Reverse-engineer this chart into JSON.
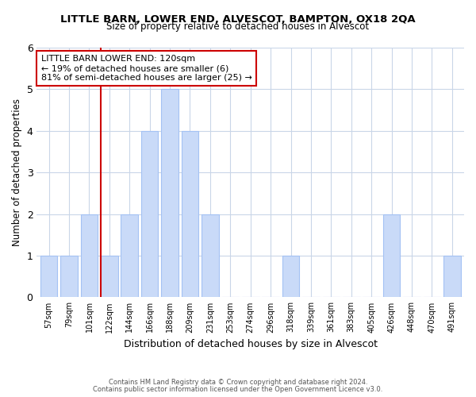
{
  "title": "LITTLE BARN, LOWER END, ALVESCOT, BAMPTON, OX18 2QA",
  "subtitle": "Size of property relative to detached houses in Alvescot",
  "xlabel": "Distribution of detached houses by size in Alvescot",
  "ylabel": "Number of detached properties",
  "bar_labels": [
    "57sqm",
    "79sqm",
    "101sqm",
    "122sqm",
    "144sqm",
    "166sqm",
    "188sqm",
    "209sqm",
    "231sqm",
    "253sqm",
    "274sqm",
    "296sqm",
    "318sqm",
    "339sqm",
    "361sqm",
    "383sqm",
    "405sqm",
    "426sqm",
    "448sqm",
    "470sqm",
    "491sqm"
  ],
  "bar_values": [
    1,
    1,
    2,
    1,
    2,
    4,
    5,
    4,
    2,
    0,
    0,
    0,
    1,
    0,
    0,
    0,
    0,
    2,
    0,
    0,
    1
  ],
  "bar_color": "#c9daf8",
  "bar_edge_color": "#a4c2f4",
  "vline_x": 3,
  "vline_color": "#cc0000",
  "annotation_title": "LITTLE BARN LOWER END: 120sqm",
  "annotation_line1": "← 19% of detached houses are smaller (6)",
  "annotation_line2": "81% of semi-detached houses are larger (25) →",
  "annotation_box_edge": "#cc0000",
  "ylim": [
    0,
    6
  ],
  "yticks": [
    0,
    1,
    2,
    3,
    4,
    5,
    6
  ],
  "footer1": "Contains HM Land Registry data © Crown copyright and database right 2024.",
  "footer2": "Contains public sector information licensed under the Open Government Licence v3.0.",
  "bg_color": "#ffffff",
  "grid_color": "#c9d6e8"
}
